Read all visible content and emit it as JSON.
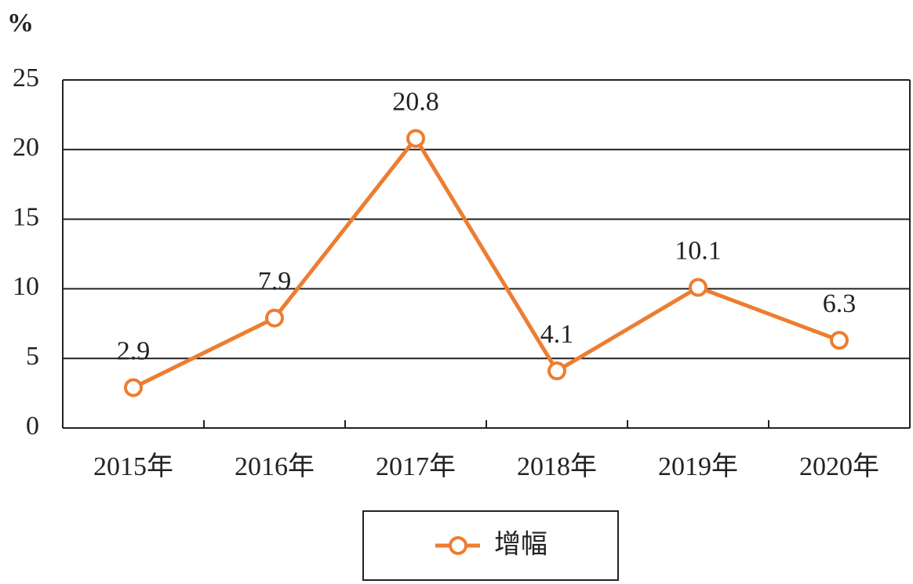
{
  "chart_data": {
    "type": "line",
    "y_label": "%",
    "categories": [
      "2015年",
      "2016年",
      "2017年",
      "2018年",
      "2019年",
      "2020年"
    ],
    "series": [
      {
        "name": "增幅",
        "color": "#ed7d31",
        "values": [
          2.9,
          7.9,
          20.8,
          4.1,
          10.1,
          6.3
        ]
      }
    ],
    "ylim": [
      0,
      25
    ],
    "yticks": [
      0,
      5,
      10,
      15,
      20,
      25
    ],
    "grid": true,
    "data_labels": true,
    "legend": "bottom"
  }
}
